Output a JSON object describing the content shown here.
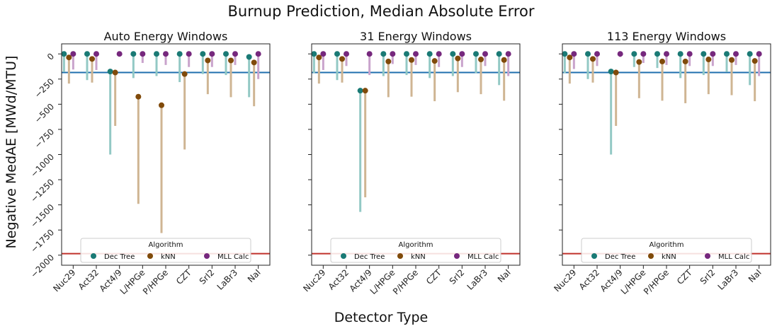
{
  "figure": {
    "title": "Burnup Prediction, Median Absolute Error",
    "xlabel": "Detector Type",
    "ylabel": "Negative MedAE [MWd/MTU]"
  },
  "chart_data": {
    "type": "scatter",
    "ylim": [
      -2100,
      100
    ],
    "yticks": [
      0,
      -250,
      -500,
      -750,
      -1000,
      -1250,
      -1500,
      -1750,
      -2000
    ],
    "ytick_labels": [
      "0",
      "−250",
      "−500",
      "−750",
      "−1000",
      "−1250",
      "−1500",
      "−1750",
      "−2000"
    ],
    "categories": [
      "Nuc29",
      "Act32",
      "Act4/9",
      "L/HPGe",
      "P/HPGe",
      "CZT",
      "SrI2",
      "LaBr3",
      "NaI"
    ],
    "reference_lines": {
      "blue": -185,
      "red": -1985
    },
    "grid": false,
    "legend": {
      "title": "Algorithm",
      "placement": "lower-center",
      "entries": [
        "Dec Tree",
        "kNN",
        "MLL Calc"
      ]
    },
    "colors": {
      "Dec Tree": "#1a7a75",
      "kNN": "#804a0a",
      "MLL Calc": "#76287d",
      "Dec Tree_bar": "#93c9c5",
      "kNN_bar": "#cfb593",
      "MLL Calc_bar": "#c9a3cc",
      "blue_line": "#1f6fae",
      "red_line": "#c0312b"
    },
    "panels": [
      {
        "title": "Auto Energy Windows",
        "series": [
          {
            "name": "Dec Tree",
            "values": [
              0,
              0,
              -175,
              0,
              0,
              0,
              0,
              0,
              -30
            ],
            "lower": [
              -180,
              -260,
              -1000,
              -240,
              -220,
              -280,
              -200,
              -210,
              -430
            ]
          },
          {
            "name": "kNN",
            "values": [
              -35,
              -50,
              -185,
              -425,
              -510,
              -200,
              -65,
              -65,
              -85
            ],
            "lower": [
              -295,
              -285,
              -715,
              -1490,
              -1780,
              -950,
              -400,
              -430,
              -520
            ]
          },
          {
            "name": "MLL Calc",
            "values": [
              0,
              0,
              0,
              0,
              0,
              0,
              0,
              0,
              0
            ],
            "lower": [
              -155,
              -160,
              -20,
              -90,
              -110,
              -130,
              -130,
              -110,
              -250
            ]
          }
        ]
      },
      {
        "title": "31 Energy Windows",
        "series": [
          {
            "name": "Dec Tree",
            "values": [
              0,
              0,
              -365,
              0,
              0,
              0,
              0,
              0,
              0
            ],
            "lower": [
              -190,
              -260,
              -1570,
              -220,
              -210,
              -240,
              -220,
              -190,
              -310
            ]
          },
          {
            "name": "kNN",
            "values": [
              -35,
              -50,
              -365,
              -75,
              -60,
              -70,
              -45,
              -55,
              -60
            ],
            "lower": [
              -295,
              -285,
              -1425,
              -430,
              -425,
              -470,
              -380,
              -400,
              -465
            ]
          },
          {
            "name": "MLL Calc",
            "values": [
              0,
              0,
              0,
              0,
              0,
              0,
              0,
              0,
              0
            ],
            "lower": [
              -160,
              -120,
              -210,
              -100,
              -110,
              -130,
              -130,
              -120,
              -220
            ]
          }
        ]
      },
      {
        "title": "113 Energy Windows",
        "series": [
          {
            "name": "Dec Tree",
            "values": [
              0,
              0,
              -175,
              0,
              0,
              0,
              0,
              0,
              0
            ],
            "lower": [
              -190,
              -250,
              -1000,
              -130,
              -140,
              -240,
              -210,
              -180,
              -310
            ]
          },
          {
            "name": "kNN",
            "values": [
              -35,
              -50,
              -185,
              -80,
              -75,
              -75,
              -55,
              -60,
              -70
            ],
            "lower": [
              -295,
              -285,
              -715,
              -440,
              -465,
              -490,
              -400,
              -410,
              -470
            ]
          },
          {
            "name": "MLL Calc",
            "values": [
              0,
              0,
              0,
              0,
              0,
              0,
              0,
              0,
              0
            ],
            "lower": [
              -150,
              -120,
              -30,
              -90,
              -110,
              -120,
              -120,
              -110,
              -220
            ]
          }
        ]
      }
    ]
  }
}
